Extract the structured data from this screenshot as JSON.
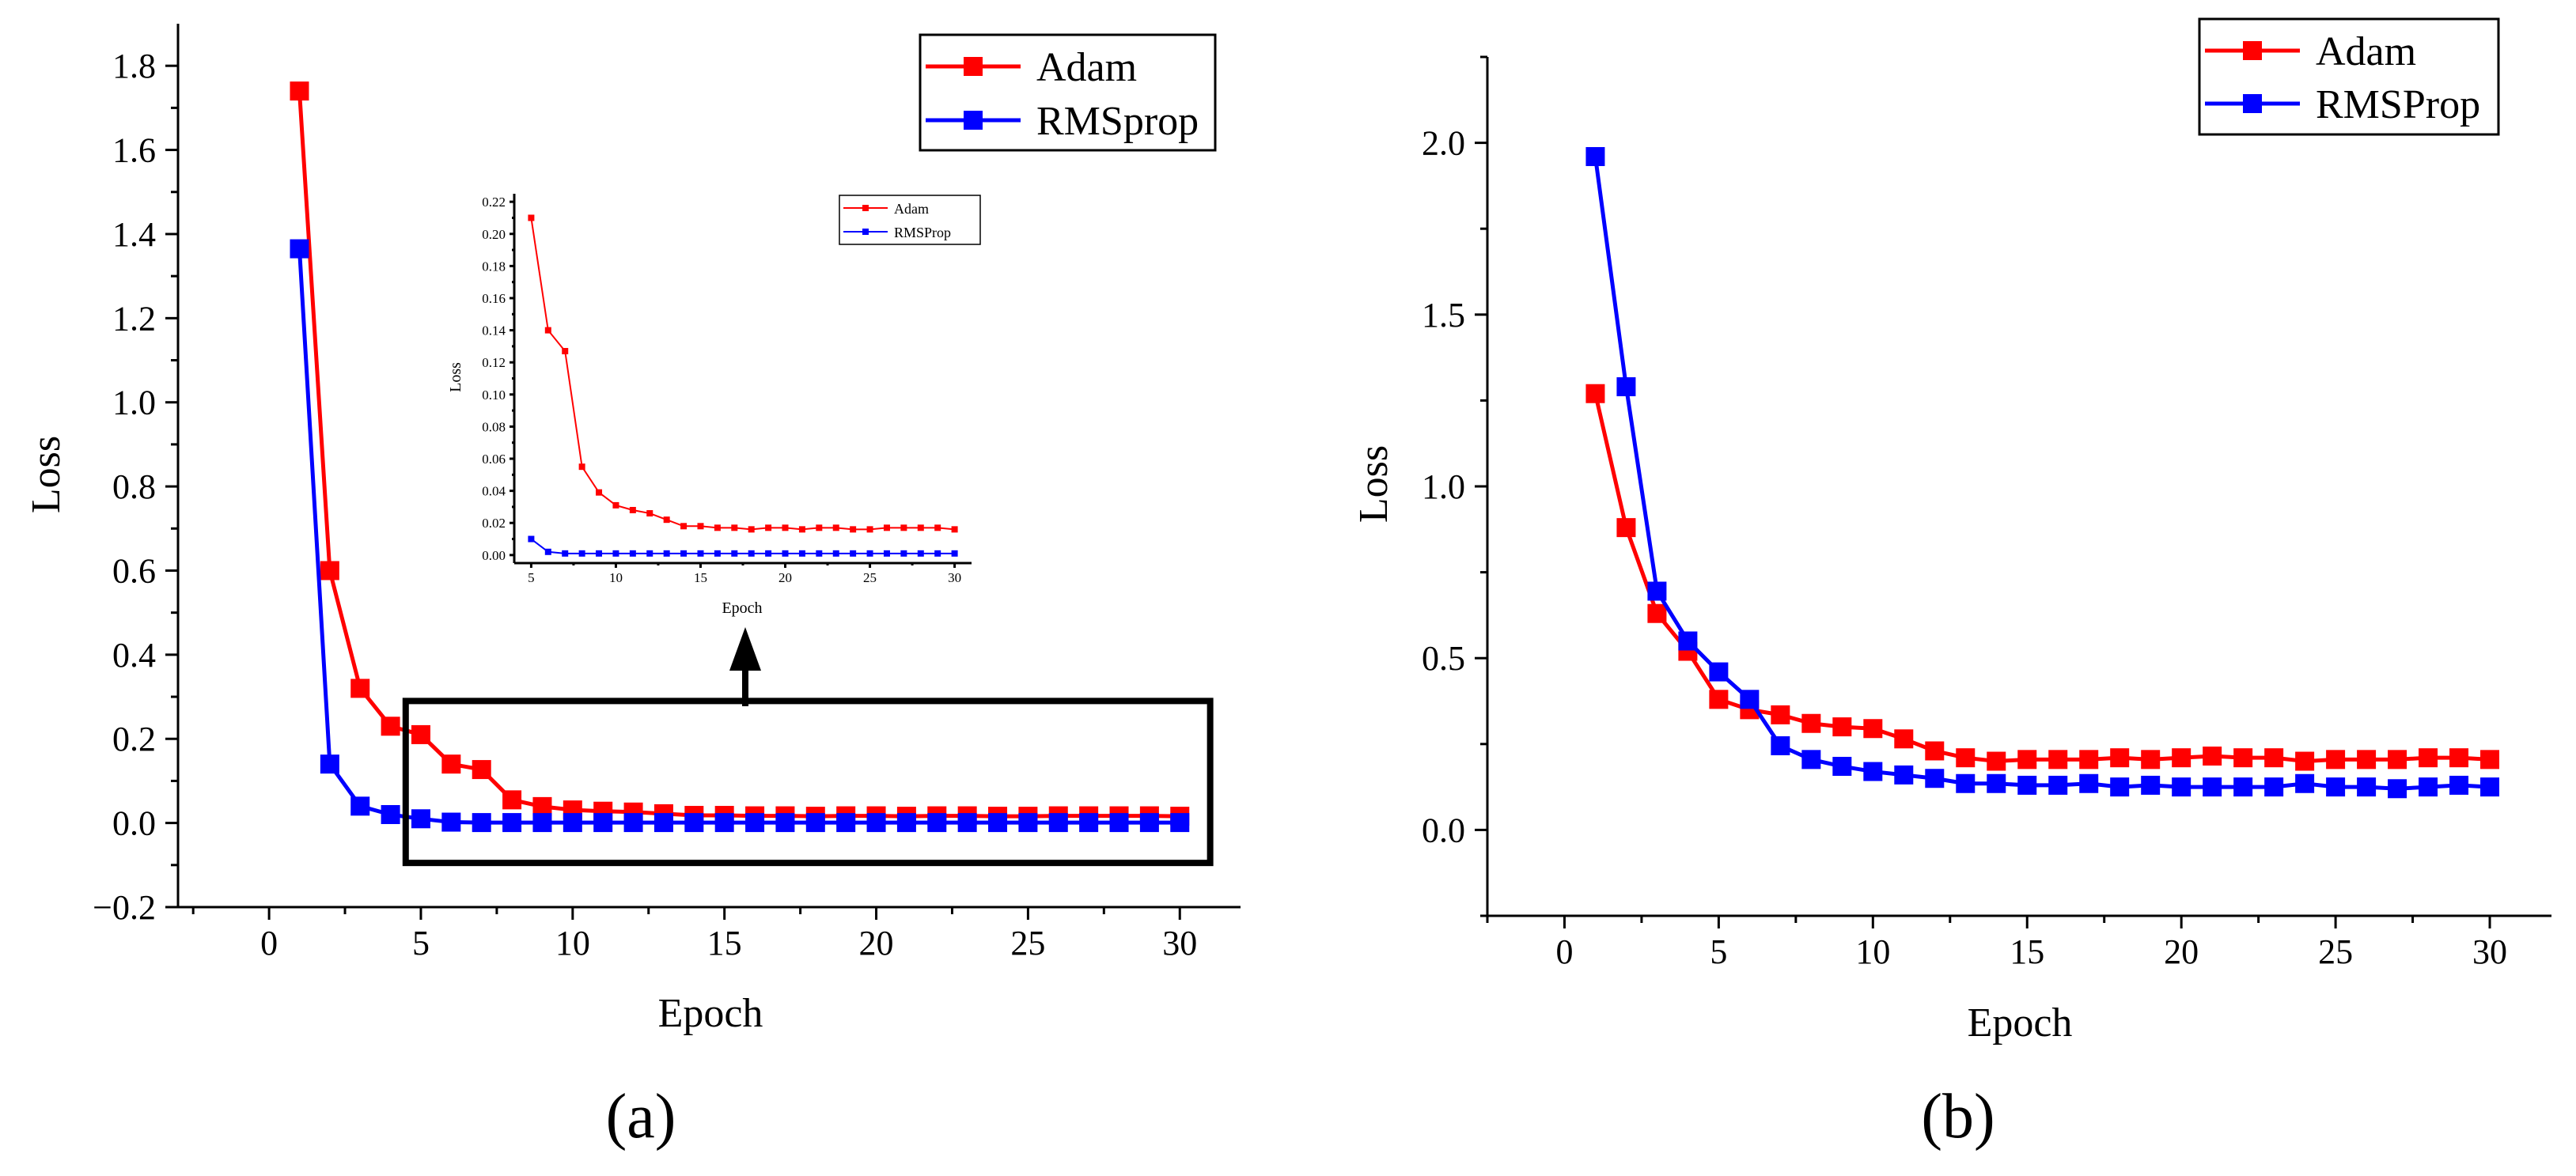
{
  "chart_data": [
    {
      "id": "a",
      "type": "line",
      "panel_label": "(a)",
      "title": "",
      "xlabel": "Epoch",
      "ylabel": "Loss",
      "xlim": [
        -3,
        32
      ],
      "ylim": [
        -0.2,
        1.9
      ],
      "xticks": [
        0,
        5,
        10,
        15,
        20,
        25,
        30
      ],
      "yticks": [
        -0.2,
        0.0,
        0.2,
        0.4,
        0.6,
        0.8,
        1.0,
        1.2,
        1.4,
        1.6,
        1.8
      ],
      "ytick_labels": [
        "−0.2",
        "0.0",
        "0.2",
        "0.4",
        "0.6",
        "0.8",
        "1.0",
        "1.2",
        "1.4",
        "1.6",
        "1.8"
      ],
      "legend_position": "top-right",
      "x": [
        1,
        2,
        3,
        4,
        5,
        6,
        7,
        8,
        9,
        10,
        11,
        12,
        13,
        14,
        15,
        16,
        17,
        18,
        19,
        20,
        21,
        22,
        23,
        24,
        25,
        26,
        27,
        28,
        29,
        30
      ],
      "series": [
        {
          "name": "Adam",
          "color": "#ff0000",
          "values": [
            1.74,
            0.6,
            0.32,
            0.23,
            0.21,
            0.14,
            0.127,
            0.055,
            0.039,
            0.031,
            0.028,
            0.026,
            0.022,
            0.018,
            0.018,
            0.017,
            0.017,
            0.016,
            0.017,
            0.017,
            0.016,
            0.017,
            0.017,
            0.016,
            0.016,
            0.017,
            0.017,
            0.017,
            0.017,
            0.016
          ]
        },
        {
          "name": "RMSprop",
          "color": "#0000ff",
          "values": [
            1.365,
            0.14,
            0.04,
            0.02,
            0.01,
            0.002,
            0.001,
            0.001,
            0.001,
            0.001,
            0.001,
            0.001,
            0.001,
            0.001,
            0.001,
            0.001,
            0.001,
            0.001,
            0.001,
            0.001,
            0.001,
            0.001,
            0.001,
            0.001,
            0.001,
            0.001,
            0.001,
            0.001,
            0.001,
            0.001
          ]
        }
      ],
      "highlight_box": {
        "x_range": [
          4.5,
          31
        ],
        "y_range": [
          -0.095,
          0.29
        ]
      },
      "inset": {
        "type": "line",
        "xlabel": "Epoch",
        "ylabel": "Loss",
        "xlim": [
          4,
          31
        ],
        "ylim": [
          -0.005,
          0.225
        ],
        "xticks": [
          5,
          10,
          15,
          20,
          25,
          30
        ],
        "yticks": [
          0.0,
          0.02,
          0.04,
          0.06,
          0.08,
          0.1,
          0.12,
          0.14,
          0.16,
          0.18,
          0.2,
          0.22
        ],
        "ytick_labels": [
          "0.00",
          "0.02",
          "0.04",
          "0.06",
          "0.08",
          "0.10",
          "0.12",
          "0.14",
          "0.16",
          "0.18",
          "0.20",
          "0.22"
        ],
        "legend_position": "top-right",
        "x": [
          5,
          6,
          7,
          8,
          9,
          10,
          11,
          12,
          13,
          14,
          15,
          16,
          17,
          18,
          19,
          20,
          21,
          22,
          23,
          24,
          25,
          26,
          27,
          28,
          29,
          30
        ],
        "series": [
          {
            "name": "Adam",
            "color": "#ff0000",
            "values": [
              0.21,
              0.14,
              0.127,
              0.055,
              0.039,
              0.031,
              0.028,
              0.026,
              0.022,
              0.018,
              0.018,
              0.017,
              0.017,
              0.016,
              0.017,
              0.017,
              0.016,
              0.017,
              0.017,
              0.016,
              0.016,
              0.017,
              0.017,
              0.017,
              0.017,
              0.016
            ]
          },
          {
            "name": "RMSProp",
            "color": "#0000ff",
            "values": [
              0.01,
              0.002,
              0.001,
              0.001,
              0.001,
              0.001,
              0.001,
              0.001,
              0.001,
              0.001,
              0.001,
              0.001,
              0.001,
              0.001,
              0.001,
              0.001,
              0.001,
              0.001,
              0.001,
              0.001,
              0.001,
              0.001,
              0.001,
              0.001,
              0.001,
              0.001
            ]
          }
        ]
      }
    },
    {
      "id": "b",
      "type": "line",
      "panel_label": "(b)",
      "title": "",
      "xlabel": "Epoch",
      "ylabel": "Loss",
      "xlim": [
        -2.5,
        32
      ],
      "ylim": [
        -0.25,
        2.25
      ],
      "xticks": [
        0,
        5,
        10,
        15,
        20,
        25,
        30
      ],
      "yticks": [
        0.0,
        0.5,
        1.0,
        1.5,
        2.0
      ],
      "ytick_labels": [
        "0.0",
        "0.5",
        "1.0",
        "1.5",
        "2.0"
      ],
      "legend_position": "top-right",
      "x": [
        1,
        2,
        3,
        4,
        5,
        6,
        7,
        8,
        9,
        10,
        11,
        12,
        13,
        14,
        15,
        16,
        17,
        18,
        19,
        20,
        21,
        22,
        23,
        24,
        25,
        26,
        27,
        28,
        29,
        30
      ],
      "series": [
        {
          "name": "Adam",
          "color": "#ff0000",
          "values": [
            1.27,
            0.88,
            0.63,
            0.52,
            0.38,
            0.35,
            0.335,
            0.31,
            0.3,
            0.295,
            0.265,
            0.23,
            0.21,
            0.2,
            0.205,
            0.205,
            0.205,
            0.21,
            0.205,
            0.21,
            0.215,
            0.21,
            0.21,
            0.2,
            0.205,
            0.205,
            0.205,
            0.21,
            0.21,
            0.205
          ]
        },
        {
          "name": "RMSProp",
          "color": "#0000ff",
          "values": [
            1.96,
            1.29,
            0.695,
            0.55,
            0.46,
            0.38,
            0.245,
            0.205,
            0.185,
            0.17,
            0.16,
            0.15,
            0.135,
            0.135,
            0.13,
            0.13,
            0.135,
            0.125,
            0.13,
            0.125,
            0.125,
            0.125,
            0.125,
            0.135,
            0.125,
            0.125,
            0.12,
            0.125,
            0.13,
            0.125
          ]
        }
      ]
    }
  ]
}
